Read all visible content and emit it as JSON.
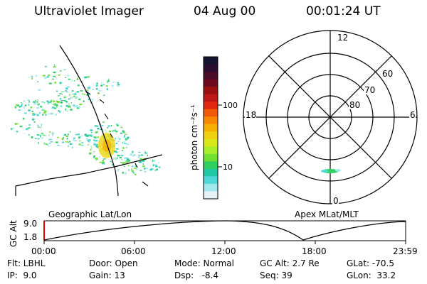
{
  "header": {
    "instrument": "Ultraviolet Imager",
    "date": "04 Aug 00",
    "time": "00:01:24 UT"
  },
  "colorbar": {
    "unit_label": "photon cm⁻²s⁻¹",
    "ticks": [
      "100",
      "10"
    ],
    "colors_top_to_bottom": [
      "#141432",
      "#2a0d30",
      "#4a0a2a",
      "#6e0820",
      "#9a1010",
      "#c01818",
      "#e02a10",
      "#f05a08",
      "#f88800",
      "#f5b000",
      "#f0d010",
      "#d8e818",
      "#a8ee28",
      "#70e030",
      "#30d060",
      "#20c8a8",
      "#50d8d8",
      "#a0e8ec",
      "#e6f2f4"
    ]
  },
  "left_panel": {
    "label": "Geographic Lat/Lon"
  },
  "polar_plot": {
    "label": "Apex MLat/MLT",
    "mlt_labels": {
      "top": "12",
      "left": "18",
      "right": "6",
      "bottom": "0"
    },
    "lat_labels": [
      "60",
      "70",
      "80"
    ]
  },
  "altitude_strip": {
    "ylabel": "GC Alt",
    "y_ticks": [
      "9.0",
      "1.8"
    ],
    "x_ticks": [
      "00:00",
      "06:00",
      "12:00",
      "18:00",
      "23:59"
    ]
  },
  "footer": {
    "rows": [
      [
        "Flt: LBHL",
        "Door: Open",
        "Mode: Normal",
        "GC Alt: 2.7 Re",
        "GLat: -70.5"
      ],
      [
        "IP:  9.0",
        "Gain: 13",
        "Dsp:   -8.4",
        "Seq: 39",
        "GLon:  33.2"
      ]
    ]
  }
}
